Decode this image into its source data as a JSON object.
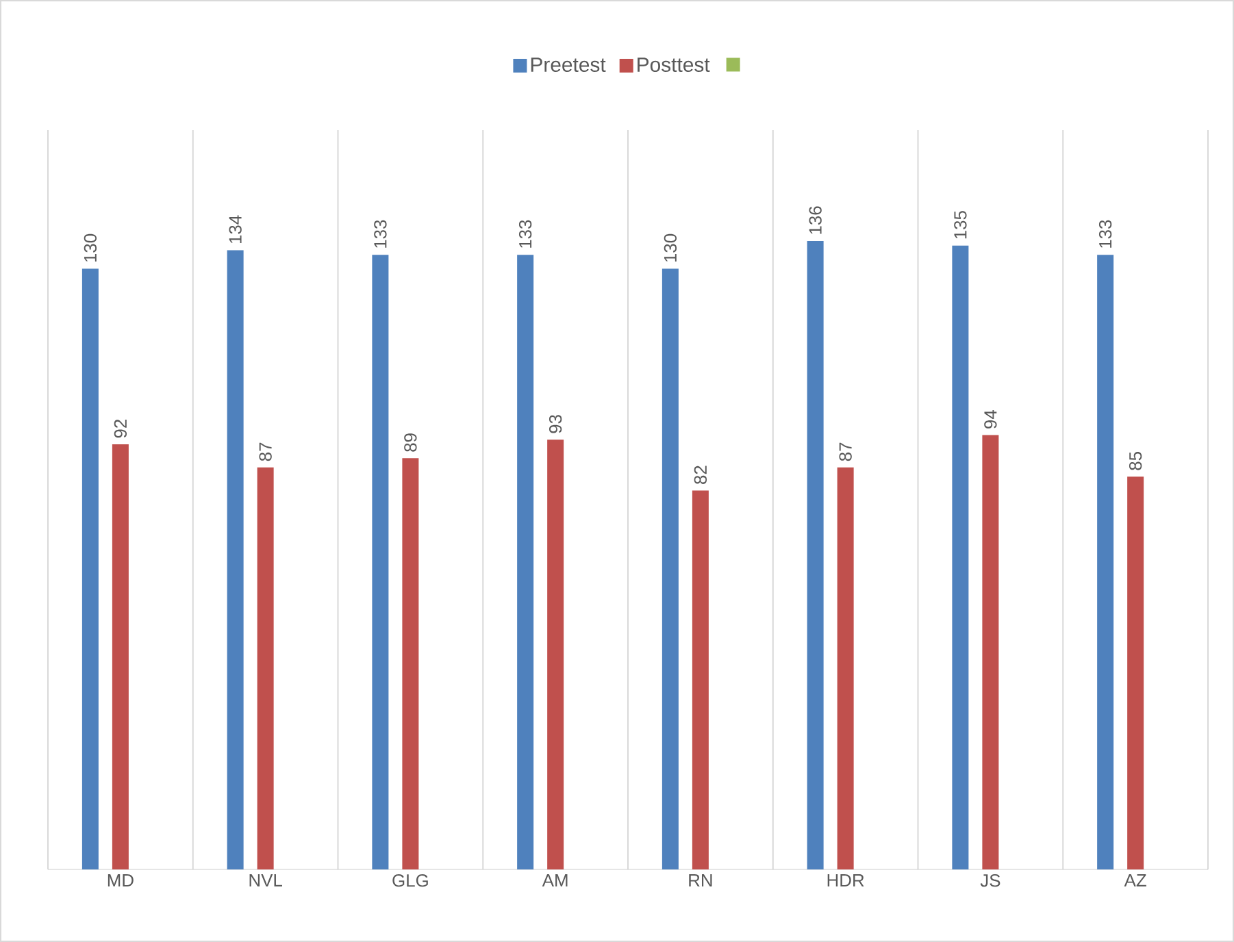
{
  "chart_data": {
    "type": "bar",
    "categories": [
      "MD",
      "NVL",
      "GLG",
      "AM",
      "RN",
      "HDR",
      "JS",
      "AZ"
    ],
    "series": [
      {
        "name": "Preetest",
        "color": "#4f81bd",
        "values": [
          130,
          134,
          133,
          133,
          130,
          136,
          135,
          133
        ]
      },
      {
        "name": "Posttest",
        "color": "#c0504d",
        "values": [
          92,
          87,
          89,
          93,
          82,
          87,
          94,
          85
        ]
      },
      {
        "color": "#9bbb59",
        "values": [
          null,
          null,
          null,
          null,
          null,
          null,
          null,
          null
        ]
      }
    ],
    "ylim": [
      0,
      160
    ],
    "tick_labels": "x",
    "data_labels": true,
    "grid": "x",
    "legend": "top"
  }
}
